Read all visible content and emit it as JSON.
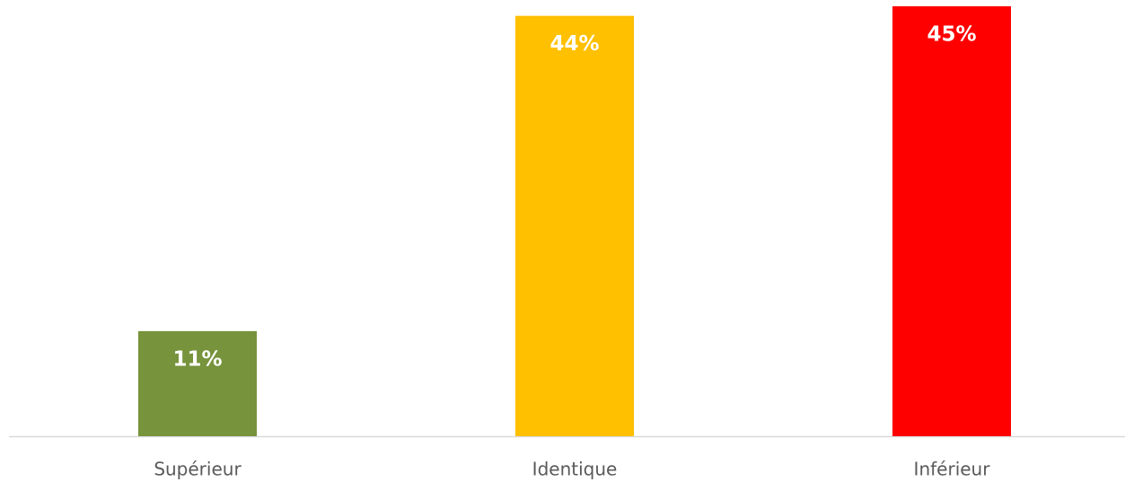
{
  "chart_data": {
    "type": "bar",
    "categories": [
      "Supérieur",
      "Identique",
      "Inférieur"
    ],
    "values": [
      11,
      44,
      45
    ],
    "value_labels": [
      "11%",
      "44%",
      "45%"
    ],
    "colors": [
      "#77933c",
      "#ffc000",
      "#ff0000"
    ],
    "grid": false
  }
}
